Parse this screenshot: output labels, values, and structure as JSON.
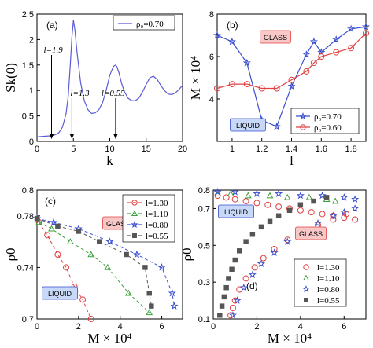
{
  "chart_data": [
    {
      "panel": "(a)",
      "type": "line",
      "xlim": [
        0,
        20
      ],
      "ylim": [
        0,
        2.5
      ],
      "xticks": [
        0,
        5,
        10,
        15,
        20
      ],
      "yticks": [
        0,
        0.5,
        1,
        1.5,
        2,
        2.5
      ],
      "xlabel": "k",
      "ylabel": "S_k^(0)",
      "series": [
        {
          "name": "ρ0=0.70",
          "color": "#5b5bd6",
          "x": [
            0.1,
            1,
            2,
            2.5,
            3,
            3.5,
            4,
            4.3,
            4.6,
            4.8,
            5,
            5.2,
            5.5,
            6,
            6.5,
            7,
            7.5,
            8,
            8.5,
            9,
            9.5,
            10,
            10.5,
            10.8,
            11,
            11.3,
            11.6,
            12,
            12.5,
            13,
            13.5,
            14,
            14.5,
            15,
            15.5,
            16,
            16.5,
            17,
            17.5,
            18,
            18.5,
            19,
            19.5,
            20
          ],
          "y": [
            0.09,
            0.1,
            0.11,
            0.13,
            0.17,
            0.28,
            0.55,
            0.9,
            1.55,
            2.05,
            2.38,
            2.2,
            1.75,
            1.15,
            0.8,
            0.62,
            0.55,
            0.56,
            0.62,
            0.76,
            1.0,
            1.3,
            1.47,
            1.5,
            1.46,
            1.33,
            1.15,
            0.98,
            0.85,
            0.8,
            0.8,
            0.85,
            0.97,
            1.12,
            1.25,
            1.28,
            1.22,
            1.1,
            1.0,
            0.93,
            0.92,
            0.95,
            1.02,
            1.1
          ]
        }
      ],
      "annotations": [
        {
          "text": "l=1.9",
          "x": 2
        },
        {
          "text": "l=1.3",
          "x": 4.8
        },
        {
          "text": "l=0.55",
          "x": 10.8
        }
      ],
      "legend_position": "top-right"
    },
    {
      "panel": "(b)",
      "type": "line",
      "xlim": [
        0.9,
        1.9
      ],
      "ylim": [
        2,
        8
      ],
      "xticks": [
        1,
        1.2,
        1.4,
        1.6,
        1.8
      ],
      "yticks": [
        4,
        6,
        8
      ],
      "xlabel": "l",
      "ylabel": "M × 10⁴",
      "series": [
        {
          "name": "ρ0=0.70",
          "color": "#3a4fd0",
          "marker": "star",
          "x": [
            0.9,
            1.0,
            1.1,
            1.2,
            1.3,
            1.4,
            1.5,
            1.55,
            1.6,
            1.7,
            1.8,
            1.9
          ],
          "y": [
            7.0,
            6.7,
            5.7,
            3.0,
            2.7,
            4.6,
            6.1,
            6.7,
            6.2,
            6.8,
            7.3,
            7.4
          ]
        },
        {
          "name": "ρ0=0.60",
          "color": "#e04040",
          "marker": "circle",
          "x": [
            0.9,
            1.0,
            1.1,
            1.2,
            1.3,
            1.4,
            1.5,
            1.55,
            1.6,
            1.7,
            1.8,
            1.9
          ],
          "y": [
            4.5,
            4.7,
            4.7,
            4.5,
            4.5,
            4.9,
            5.3,
            5.7,
            6.0,
            6.2,
            6.4,
            7.1
          ]
        }
      ],
      "labels": [
        "GLASS",
        "LIQUID"
      ],
      "legend_position": "bottom-right"
    },
    {
      "panel": "(c)",
      "type": "scatter",
      "xlim": [
        0,
        7
      ],
      "ylim": [
        0.7,
        0.8
      ],
      "xticks": [
        0,
        2,
        4,
        6
      ],
      "yticks": [
        0.7,
        0.74,
        0.78,
        0.8
      ],
      "xlabel": "M × 10⁴",
      "ylabel": "ρ0",
      "series": [
        {
          "name": "l=1.30",
          "color": "#e04040",
          "marker": "circle",
          "x": [
            0.1,
            0.5,
            1.0,
            1.4,
            1.8,
            2.2,
            2.6
          ],
          "y": [
            0.775,
            0.765,
            0.75,
            0.74,
            0.725,
            0.715,
            0.7
          ]
        },
        {
          "name": "l=1.10",
          "color": "#3aa03a",
          "marker": "triangle",
          "x": [
            0.1,
            0.7,
            1.6,
            2.6,
            3.4,
            4.4,
            5.4
          ],
          "y": [
            0.775,
            0.77,
            0.76,
            0.75,
            0.74,
            0.72,
            0.705
          ]
        },
        {
          "name": "l=0.80",
          "color": "#3a4fd0",
          "marker": "star",
          "x": [
            0.0,
            0.8,
            2.0,
            3.5,
            4.8,
            6.0,
            6.5,
            6.6
          ],
          "y": [
            0.778,
            0.775,
            0.77,
            0.76,
            0.75,
            0.74,
            0.72,
            0.71
          ]
        },
        {
          "name": "l=0.55",
          "color": "#555555",
          "marker": "square",
          "x": [
            0.0,
            1.0,
            2.0,
            3.0,
            4.3,
            5.2,
            5.4,
            5.5
          ],
          "y": [
            0.778,
            0.772,
            0.768,
            0.76,
            0.75,
            0.74,
            0.72,
            0.71
          ]
        }
      ],
      "labels": [
        "GLASS",
        "LIQUID"
      ],
      "legend_position": "top-right"
    },
    {
      "panel": "(d)",
      "type": "scatter",
      "xlim": [
        0,
        7
      ],
      "ylim": [
        0.1,
        0.8
      ],
      "xticks": [
        0,
        2,
        4,
        6
      ],
      "yticks": [
        0.1,
        0.3,
        0.5,
        0.7,
        0.8
      ],
      "xlabel": "M × 10⁴",
      "ylabel": "ρ0",
      "series": [
        {
          "name": "l=1.30",
          "color": "#e04040",
          "marker": "circle",
          "x": [
            0.2,
            0.6,
            1.0,
            1.5,
            2.0,
            2.5,
            3.0,
            3.5,
            4.0,
            4.5,
            5.0,
            5.5,
            6.0,
            6.5,
            0.8,
            0.9,
            1.0,
            1.2,
            1.5,
            1.9,
            2.3,
            2.8,
            3.4,
            4.0,
            4.8,
            5.5,
            6.1
          ],
          "y": [
            0.77,
            0.76,
            0.75,
            0.74,
            0.73,
            0.72,
            0.71,
            0.7,
            0.69,
            0.68,
            0.67,
            0.66,
            0.65,
            0.64,
            0.12,
            0.16,
            0.2,
            0.26,
            0.32,
            0.38,
            0.43,
            0.48,
            0.53,
            0.57,
            0.61,
            0.64,
            0.67
          ]
        },
        {
          "name": "l=1.10",
          "color": "#3aa03a",
          "marker": "triangle",
          "x": [
            0.2,
            0.8,
            1.6,
            2.6,
            3.4,
            4.4,
            5.2,
            5.6
          ],
          "y": [
            0.78,
            0.78,
            0.77,
            0.77,
            0.76,
            0.76,
            0.75,
            0.74
          ]
        },
        {
          "name": "l=0.80",
          "color": "#3a4fd0",
          "marker": "star",
          "x": [
            0.2,
            1.0,
            2.0,
            3.0,
            4.0,
            5.0,
            6.0,
            6.5,
            0.9,
            1.1,
            1.4,
            1.8,
            2.2,
            2.8,
            3.4,
            4.1,
            4.8,
            5.5,
            6.0,
            6.5
          ],
          "y": [
            0.79,
            0.79,
            0.78,
            0.78,
            0.77,
            0.77,
            0.76,
            0.75,
            0.12,
            0.2,
            0.27,
            0.34,
            0.4,
            0.46,
            0.52,
            0.57,
            0.62,
            0.66,
            0.68,
            0.7
          ]
        },
        {
          "name": "l=0.55",
          "color": "#555555",
          "marker": "square",
          "x": [
            0.3,
            0.4,
            0.5,
            0.6,
            0.7,
            0.85,
            1.0,
            1.2,
            1.5,
            1.8,
            2.2,
            2.6,
            3.0,
            3.5,
            4.0,
            4.6,
            5.2
          ],
          "y": [
            0.12,
            0.17,
            0.22,
            0.27,
            0.32,
            0.37,
            0.42,
            0.47,
            0.52,
            0.56,
            0.6,
            0.63,
            0.66,
            0.69,
            0.72,
            0.74,
            0.76
          ]
        }
      ],
      "labels": [
        "GLASS",
        "LIQUID"
      ],
      "legend_position": "bottom-right"
    }
  ]
}
